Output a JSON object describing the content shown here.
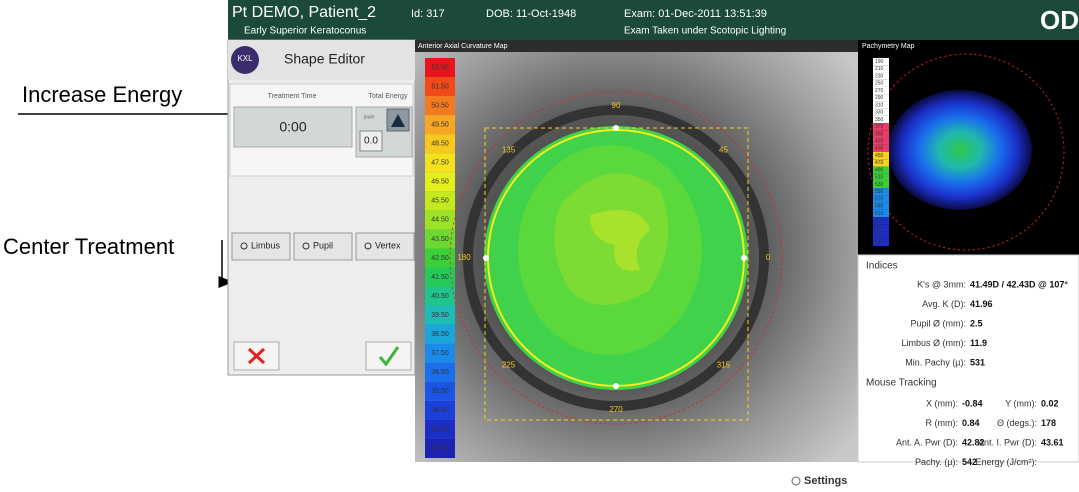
{
  "header": {
    "patient": "Pt DEMO, Patient_2",
    "condition": "Early Superior Keratoconus",
    "id": "Id: 317",
    "dob": "DOB: 11-Oct-1948",
    "exam": "Exam: 01-Dec-2011 13:51:39",
    "lighting": "Exam Taken under Scotopic Lighting",
    "eye": "OD"
  },
  "annotations": {
    "increase_energy": "Increase Energy",
    "center_treatment": "Center Treatment"
  },
  "shape_editor": {
    "title": "Shape Editor",
    "logo": "KXL",
    "treatment_time_label": "Treatment Time",
    "total_energy_label": "Total Energy",
    "treatment_time": "0:00",
    "energy_unit": "joule",
    "total_energy": "0.0",
    "buttons": [
      "Limbus",
      "Pupil",
      "Vertex"
    ]
  },
  "curvature_map": {
    "title": "Anterior Axial Curvature Map",
    "scale": [
      "52.50",
      "51.50",
      "50.50",
      "49.50",
      "48.50",
      "47.50",
      "46.50",
      "45.50",
      "44.50",
      "43.50",
      "42.50",
      "41.50",
      "40.50",
      "39.50",
      "38.50",
      "37.50",
      "36.50",
      "35.50",
      "34.50",
      "33.50",
      "32.50"
    ],
    "angles": [
      "90",
      "45",
      "0",
      "315",
      "270",
      "225",
      "180",
      "135"
    ]
  },
  "pachymetry_map": {
    "title": "Pachymetry Map",
    "scale": [
      "190",
      "210",
      "230",
      "250",
      "270",
      "290",
      "310",
      "330",
      "350",
      "370",
      "390",
      "410",
      "430",
      "450",
      "470",
      "490",
      "510",
      "530",
      "550",
      "570",
      "590",
      "610",
      "630",
      "650",
      "670",
      "690"
    ]
  },
  "indices": {
    "title": "Indices",
    "rows": [
      [
        "K's @ 3mm:",
        "41.49D / 42.43D @ 107°"
      ],
      [
        "Avg. K (D):",
        "41.96"
      ],
      [
        "Pupil Ø (mm):",
        "2.5"
      ],
      [
        "Limbus Ø (mm):",
        "11.9"
      ],
      [
        "Min. Pachy (µ):",
        "531"
      ]
    ]
  },
  "mouse_tracking": {
    "title": "Mouse Tracking",
    "rows": [
      [
        "X (mm):",
        "-0.84",
        "Y (mm):",
        "0.02"
      ],
      [
        "R (mm):",
        "0.84",
        "Θ (degs.):",
        "178"
      ],
      [
        "Ant. A. Pwr (D):",
        "42.82",
        "Ant. I. Pwr (D):",
        "43.61"
      ],
      [
        "Pachy. (µ):",
        "542",
        "Energy (J/cm²):"
      ]
    ]
  },
  "settings": "Settings"
}
